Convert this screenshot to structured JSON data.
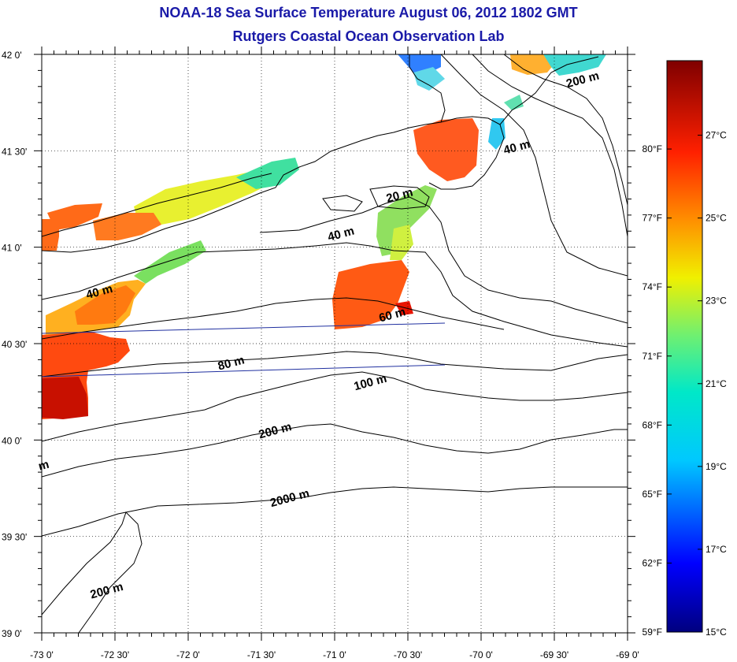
{
  "header": {
    "title": "NOAA-18 Sea Surface Temperature August 06, 2012 1802 GMT",
    "subtitle": "Rutgers Coastal Ocean Observation Lab"
  },
  "map": {
    "lon_range": [
      -73,
      -69
    ],
    "lat_range": [
      39,
      42
    ],
    "lon_ticks": [
      {
        "value": -73.0,
        "label": "-73 0'"
      },
      {
        "value": -72.5,
        "label": "-72 30'"
      },
      {
        "value": -72.0,
        "label": "-72 0'"
      },
      {
        "value": -71.5,
        "label": "-71 30'"
      },
      {
        "value": -71.0,
        "label": "-71 0'"
      },
      {
        "value": -70.5,
        "label": "-70 30'"
      },
      {
        "value": -70.0,
        "label": "-70 0'"
      },
      {
        "value": -69.5,
        "label": "-69 30'"
      },
      {
        "value": -69.0,
        "label": "-69 0'"
      }
    ],
    "lat_ticks": [
      {
        "value": 42.0,
        "label": "42 0'"
      },
      {
        "value": 41.5,
        "label": "41 30'"
      },
      {
        "value": 41.0,
        "label": "41 0'"
      },
      {
        "value": 40.5,
        "label": "40 30'"
      },
      {
        "value": 40.0,
        "label": "40 0'"
      },
      {
        "value": 39.5,
        "label": "39 30'"
      },
      {
        "value": 39.0,
        "label": "39 0'"
      }
    ],
    "contour_labels": [
      {
        "text": "20 m",
        "lon": -70.55,
        "lat": 41.25
      },
      {
        "text": "40 m",
        "lon": -70.95,
        "lat": 41.05
      },
      {
        "text": "40 m",
        "lon": -72.6,
        "lat": 40.75
      },
      {
        "text": "60 m",
        "lon": -70.6,
        "lat": 40.63
      },
      {
        "text": "80 m",
        "lon": -71.7,
        "lat": 40.38
      },
      {
        "text": "100 m",
        "lon": -70.75,
        "lat": 40.28
      },
      {
        "text": "200 m",
        "lon": -71.4,
        "lat": 40.03
      },
      {
        "text": "2000 m",
        "lon": -71.3,
        "lat": 39.68
      },
      {
        "text": "200 m",
        "lon": -72.55,
        "lat": 39.2
      },
      {
        "text": "200 m",
        "lon": -69.3,
        "lat": 41.85
      },
      {
        "text": "40 m",
        "lon": -69.75,
        "lat": 41.5
      },
      {
        "text": "m",
        "lon": -72.98,
        "lat": 39.85
      }
    ]
  },
  "colorbar": {
    "min_c": 15,
    "max_c": 28.8,
    "celsius_labels": [
      {
        "value": 27,
        "label": "27°C"
      },
      {
        "value": 25,
        "label": "25°C"
      },
      {
        "value": 23,
        "label": "23°C"
      },
      {
        "value": 21,
        "label": "21°C"
      },
      {
        "value": 19,
        "label": "19°C"
      },
      {
        "value": 17,
        "label": "17°C"
      },
      {
        "value": 15,
        "label": "15°C"
      }
    ],
    "fahrenheit_labels": [
      {
        "value": 80,
        "label": "80°F"
      },
      {
        "value": 77,
        "label": "77°F"
      },
      {
        "value": 74,
        "label": "74°F"
      },
      {
        "value": 71,
        "label": "71°F"
      },
      {
        "value": 68,
        "label": "68°F"
      },
      {
        "value": 65,
        "label": "65°F"
      },
      {
        "value": 62,
        "label": "62°F"
      },
      {
        "value": 59,
        "label": "59°F"
      }
    ]
  }
}
